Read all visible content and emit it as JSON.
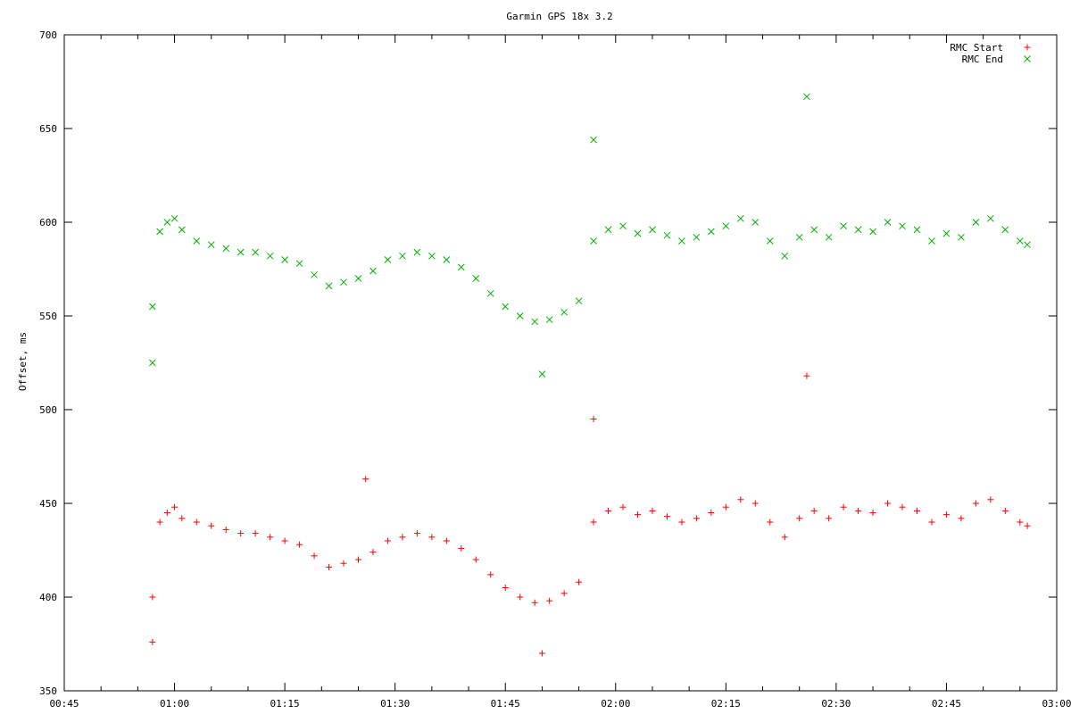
{
  "chart_data": {
    "type": "scatter",
    "title": "Garmin GPS 18x 3.2",
    "xlabel": "",
    "ylabel": "Offset, ms",
    "xlim": [
      "00:45",
      "03:00"
    ],
    "ylim": [
      350,
      700
    ],
    "x_ticks": [
      "00:45",
      "01:00",
      "01:15",
      "01:30",
      "01:45",
      "02:00",
      "02:15",
      "02:30",
      "02:45",
      "03:00"
    ],
    "y_ticks": [
      350,
      400,
      450,
      500,
      550,
      600,
      650,
      700
    ],
    "grid": false,
    "legend_position": "top-right",
    "series": [
      {
        "name": "RMC Start",
        "marker": "+",
        "color": "#ff0000",
        "x": [
          "00:57",
          "00:58",
          "00:59",
          "01:00",
          "01:01",
          "01:03",
          "01:05",
          "01:07",
          "01:09",
          "01:11",
          "01:13",
          "01:15",
          "01:17",
          "01:19",
          "01:21",
          "01:23",
          "01:25",
          "01:27",
          "01:29",
          "01:31",
          "01:33",
          "01:35",
          "01:37",
          "01:39",
          "01:41",
          "01:43",
          "01:45",
          "01:47",
          "01:49",
          "01:51",
          "01:53",
          "01:55",
          "01:57",
          "01:59",
          "02:01",
          "02:03",
          "02:05",
          "02:07",
          "02:09",
          "02:11",
          "02:13",
          "02:15",
          "02:17",
          "02:19",
          "02:21",
          "02:23",
          "02:25",
          "02:27",
          "02:29",
          "02:31",
          "02:33",
          "02:35",
          "02:37",
          "02:39",
          "02:41",
          "02:43",
          "02:45",
          "02:47",
          "02:49",
          "02:51",
          "02:53",
          "02:55",
          "02:56",
          "00:57",
          "01:26",
          "01:50",
          "01:57",
          "02:26"
        ],
        "y": [
          400,
          440,
          445,
          448,
          442,
          440,
          438,
          436,
          434,
          434,
          432,
          430,
          428,
          422,
          416,
          418,
          420,
          424,
          430,
          432,
          434,
          432,
          430,
          426,
          420,
          412,
          405,
          400,
          397,
          398,
          402,
          408,
          440,
          446,
          448,
          444,
          446,
          443,
          440,
          442,
          445,
          448,
          452,
          450,
          440,
          432,
          442,
          446,
          442,
          448,
          446,
          445,
          450,
          448,
          446,
          440,
          444,
          442,
          450,
          452,
          446,
          440,
          438,
          376,
          463,
          370,
          495,
          518
        ]
      },
      {
        "name": "RMC End",
        "marker": "x",
        "color": "#00b000",
        "x": [
          "00:57",
          "00:58",
          "00:59",
          "01:00",
          "01:01",
          "01:03",
          "01:05",
          "01:07",
          "01:09",
          "01:11",
          "01:13",
          "01:15",
          "01:17",
          "01:19",
          "01:21",
          "01:23",
          "01:25",
          "01:27",
          "01:29",
          "01:31",
          "01:33",
          "01:35",
          "01:37",
          "01:39",
          "01:41",
          "01:43",
          "01:45",
          "01:47",
          "01:49",
          "01:51",
          "01:53",
          "01:55",
          "01:57",
          "01:59",
          "02:01",
          "02:03",
          "02:05",
          "02:07",
          "02:09",
          "02:11",
          "02:13",
          "02:15",
          "02:17",
          "02:19",
          "02:21",
          "02:23",
          "02:25",
          "02:27",
          "02:29",
          "02:31",
          "02:33",
          "02:35",
          "02:37",
          "02:39",
          "02:41",
          "02:43",
          "02:45",
          "02:47",
          "02:49",
          "02:51",
          "02:53",
          "02:55",
          "02:56",
          "00:57",
          "01:57",
          "02:26",
          "01:50"
        ],
        "y": [
          555,
          595,
          600,
          602,
          596,
          590,
          588,
          586,
          584,
          584,
          582,
          580,
          578,
          572,
          566,
          568,
          570,
          574,
          580,
          582,
          584,
          582,
          580,
          576,
          570,
          562,
          555,
          550,
          547,
          548,
          552,
          558,
          590,
          596,
          598,
          594,
          596,
          593,
          590,
          592,
          595,
          598,
          602,
          600,
          590,
          582,
          592,
          596,
          592,
          598,
          596,
          595,
          600,
          598,
          596,
          590,
          594,
          592,
          600,
          602,
          596,
          590,
          588,
          525,
          644,
          667,
          519
        ]
      }
    ]
  }
}
